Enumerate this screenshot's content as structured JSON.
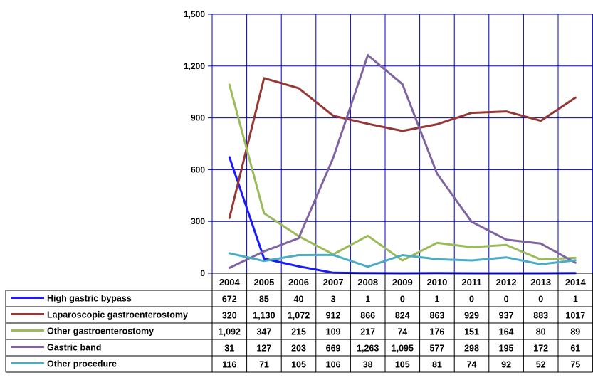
{
  "chart_data": {
    "type": "line",
    "categories": [
      "2004",
      "2005",
      "2006",
      "2007",
      "2008",
      "2009",
      "2010",
      "2011",
      "2012",
      "2013",
      "2014"
    ],
    "ylim": [
      0,
      1500
    ],
    "y_ticks": [
      "0",
      "300",
      "600",
      "900",
      "1,200",
      "1,500"
    ],
    "y_tick_values": [
      0,
      300,
      600,
      900,
      1200,
      1500
    ],
    "grid": true,
    "grid_color": "#0000cc",
    "legend": "data-table-below",
    "series": [
      {
        "name": "High gastric bypass",
        "color": "#1a1aff",
        "values": [
          672,
          85,
          40,
          3,
          1,
          0,
          1,
          0,
          0,
          0,
          1
        ],
        "labels": [
          "672",
          "85",
          "40",
          "3",
          "1",
          "0",
          "1",
          "0",
          "0",
          "0",
          "1"
        ]
      },
      {
        "name": "Laparoscopic gastroenterostomy",
        "color": "#953735",
        "values": [
          320,
          1130,
          1072,
          912,
          866,
          824,
          863,
          929,
          937,
          883,
          1017
        ],
        "labels": [
          "320",
          "1,130",
          "1,072",
          "912",
          "866",
          "824",
          "863",
          "929",
          "937",
          "883",
          "1017"
        ]
      },
      {
        "name": "Other  gastroenterostomy",
        "color": "#9bbb59",
        "values": [
          1092,
          347,
          215,
          109,
          217,
          74,
          176,
          151,
          164,
          80,
          89
        ],
        "labels": [
          "1,092",
          "347",
          "215",
          "109",
          "217",
          "74",
          "176",
          "151",
          "164",
          "80",
          "89"
        ]
      },
      {
        "name": "Gastric band",
        "color": "#8064a2",
        "values": [
          31,
          127,
          203,
          669,
          1263,
          1095,
          577,
          298,
          195,
          172,
          61
        ],
        "labels": [
          "31",
          "127",
          "203",
          "669",
          "1,263",
          "1,095",
          "577",
          "298",
          "195",
          "172",
          "61"
        ]
      },
      {
        "name": "Other procedure",
        "color": "#4bacc6",
        "values": [
          116,
          71,
          105,
          106,
          38,
          105,
          81,
          74,
          92,
          52,
          75
        ],
        "labels": [
          "116",
          "71",
          "105",
          "106",
          "38",
          "105",
          "81",
          "74",
          "92",
          "52",
          "75"
        ]
      }
    ]
  }
}
